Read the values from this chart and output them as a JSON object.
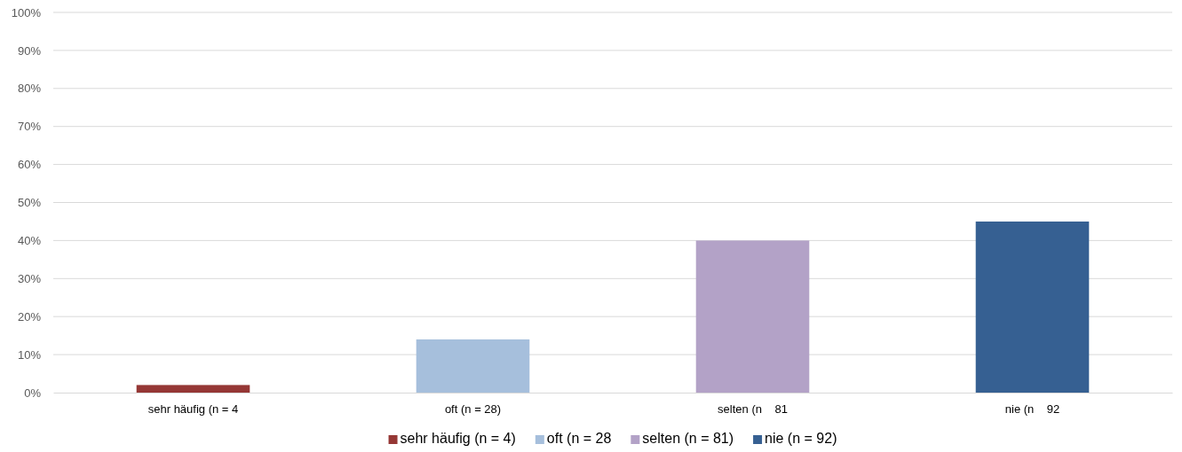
{
  "chart_data": {
    "type": "bar",
    "categories": [
      "sehr häufig (n = 4",
      "oft (n = 28)",
      "selten (n    81",
      "nie (n    92"
    ],
    "series": [
      {
        "name": "sehr häufig (n = 4)",
        "color": "#953735",
        "values": [
          2,
          null,
          null,
          null
        ]
      },
      {
        "name": "oft (n = 28",
        "color": "#a6bfdc",
        "values": [
          null,
          14,
          null,
          null
        ]
      },
      {
        "name": "selten (n = 81)",
        "color": "#b3a2c7",
        "values": [
          null,
          null,
          40,
          null
        ]
      },
      {
        "name": "nie (n = 92)",
        "color": "#366092",
        "values": [
          null,
          null,
          null,
          45
        ]
      }
    ],
    "ylim": [
      0,
      100
    ],
    "yticks": [
      {
        "value": 0,
        "label": "0%"
      },
      {
        "value": 10,
        "label": "10%"
      },
      {
        "value": 20,
        "label": "20%"
      },
      {
        "value": 30,
        "label": "30%"
      },
      {
        "value": 40,
        "label": "40%"
      },
      {
        "value": 50,
        "label": "50%"
      },
      {
        "value": 60,
        "label": "60%"
      },
      {
        "value": 70,
        "label": "70%"
      },
      {
        "value": 80,
        "label": "80%"
      },
      {
        "value": 90,
        "label": "90%"
      },
      {
        "value": 100,
        "label": "100%"
      }
    ],
    "grid": "y",
    "legend": "bottom"
  }
}
